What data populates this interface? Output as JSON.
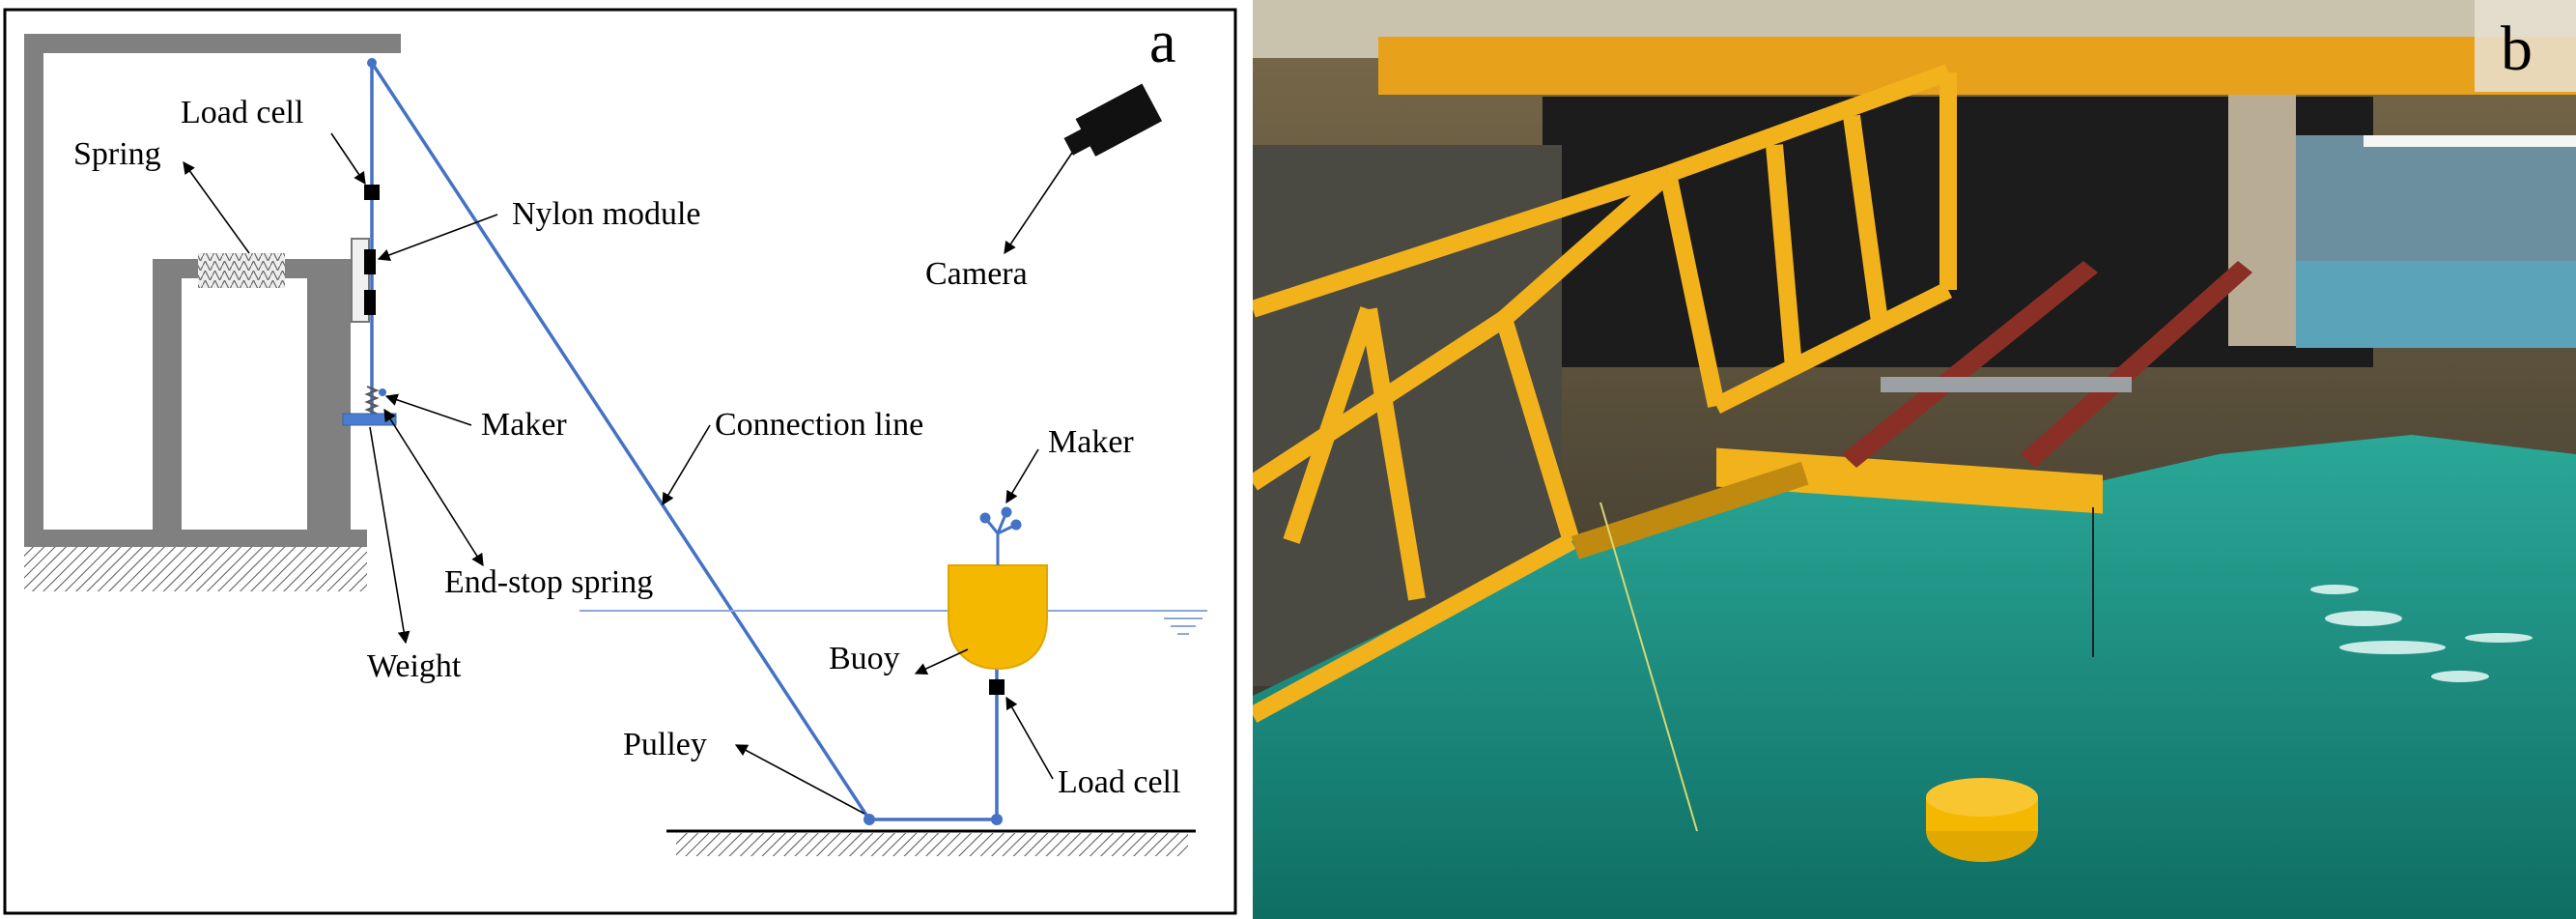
{
  "panel_a": {
    "letter": "a",
    "labels": {
      "load_cell_top": "Load cell",
      "spring": "Spring",
      "nylon_module": "Nylon module",
      "camera": "Camera",
      "maker_left": "Maker",
      "connection_line": "Connection line",
      "maker_right": "Maker",
      "end_stop_spring": "End-stop spring",
      "weight": "Weight",
      "buoy": "Buoy",
      "pulley": "Pulley",
      "load_cell_bottom": "Load cell"
    }
  },
  "panel_b": {
    "letter": "b"
  },
  "colors": {
    "structure": "#808080",
    "line": "#4472c4",
    "buoy": "#f5b800",
    "water_photo": "#1f9b8e",
    "frame_photo": "#f2b21c",
    "beam_photo": "#8a2f25"
  }
}
